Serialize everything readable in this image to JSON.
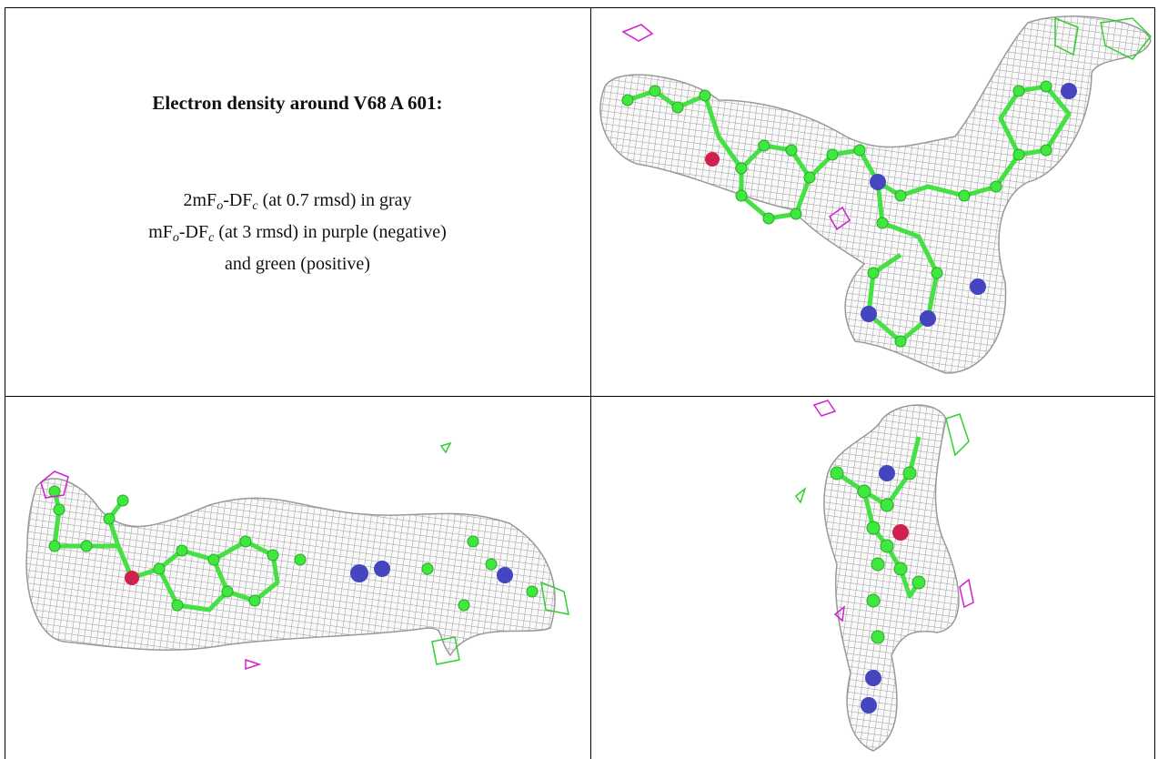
{
  "caption": {
    "title": "Electron density around V68 A 601:",
    "lines": [
      [
        "2mF",
        "o",
        "-DF",
        "c",
        " (at 0.7 rmsd) in gray"
      ],
      [
        "mF",
        "o",
        "-DF",
        "c",
        " (at 3 rmsd) in purple (negative)"
      ],
      [
        "and green (positive)"
      ]
    ]
  }
}
